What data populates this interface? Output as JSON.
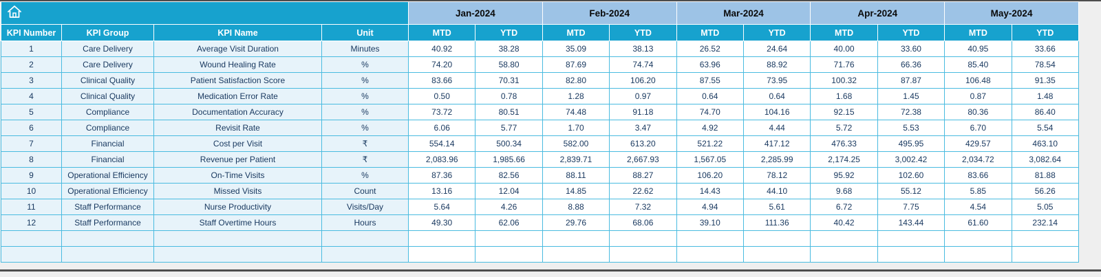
{
  "theme": {
    "header_teal": "#17a2ce",
    "month_header_bg": "#9dc3e6",
    "grid_border": "#49bbe0",
    "row_left_bg": "#e7f3fa",
    "text_color": "#17375e"
  },
  "icons": {
    "home": "home-icon"
  },
  "table": {
    "left_headers": [
      "KPI Number",
      "KPI Group",
      "KPI Name",
      "Unit"
    ],
    "months": [
      "Jan-2024",
      "Feb-2024",
      "Mar-2024",
      "Apr-2024",
      "May-2024"
    ],
    "sub_headers": [
      "MTD",
      "YTD"
    ],
    "rows": [
      {
        "num": "1",
        "group": "Care Delivery",
        "name": "Average Visit Duration",
        "unit": "Minutes",
        "values": [
          "40.92",
          "38.28",
          "35.09",
          "38.13",
          "26.52",
          "24.64",
          "40.00",
          "33.60",
          "40.95",
          "33.66"
        ]
      },
      {
        "num": "2",
        "group": "Care Delivery",
        "name": "Wound Healing Rate",
        "unit": "%",
        "values": [
          "74.20",
          "58.80",
          "87.69",
          "74.74",
          "63.96",
          "88.92",
          "71.76",
          "66.36",
          "85.40",
          "78.54"
        ]
      },
      {
        "num": "3",
        "group": "Clinical Quality",
        "name": "Patient Satisfaction Score",
        "unit": "%",
        "values": [
          "83.66",
          "70.31",
          "82.80",
          "106.20",
          "87.55",
          "73.95",
          "100.32",
          "87.87",
          "106.48",
          "91.35"
        ]
      },
      {
        "num": "4",
        "group": "Clinical Quality",
        "name": "Medication Error Rate",
        "unit": "%",
        "values": [
          "0.50",
          "0.78",
          "1.28",
          "0.97",
          "0.64",
          "0.64",
          "1.68",
          "1.45",
          "0.87",
          "1.48"
        ]
      },
      {
        "num": "5",
        "group": "Compliance",
        "name": "Documentation Accuracy",
        "unit": "%",
        "values": [
          "73.72",
          "80.51",
          "74.48",
          "91.18",
          "74.70",
          "104.16",
          "92.15",
          "72.38",
          "80.36",
          "86.40"
        ]
      },
      {
        "num": "6",
        "group": "Compliance",
        "name": "Revisit Rate",
        "unit": "%",
        "values": [
          "6.06",
          "5.77",
          "1.70",
          "3.47",
          "4.92",
          "4.44",
          "5.72",
          "5.53",
          "6.70",
          "5.54"
        ]
      },
      {
        "num": "7",
        "group": "Financial",
        "name": "Cost per Visit",
        "unit": "₹",
        "values": [
          "554.14",
          "500.34",
          "582.00",
          "613.20",
          "521.22",
          "417.12",
          "476.33",
          "495.95",
          "429.57",
          "463.10"
        ]
      },
      {
        "num": "8",
        "group": "Financial",
        "name": "Revenue per Patient",
        "unit": "₹",
        "values": [
          "2,083.96",
          "1,985.66",
          "2,839.71",
          "2,667.93",
          "1,567.05",
          "2,285.99",
          "2,174.25",
          "3,002.42",
          "2,034.72",
          "3,082.64"
        ]
      },
      {
        "num": "9",
        "group": "Operational Efficiency",
        "name": "On-Time Visits",
        "unit": "%",
        "values": [
          "87.36",
          "82.56",
          "88.11",
          "88.27",
          "106.20",
          "78.12",
          "95.92",
          "102.60",
          "83.66",
          "81.88"
        ]
      },
      {
        "num": "10",
        "group": "Operational Efficiency",
        "name": "Missed Visits",
        "unit": "Count",
        "values": [
          "13.16",
          "12.04",
          "14.85",
          "22.62",
          "14.43",
          "44.10",
          "9.68",
          "55.12",
          "5.85",
          "56.26"
        ]
      },
      {
        "num": "11",
        "group": "Staff Performance",
        "name": "Nurse Productivity",
        "unit": "Visits/Day",
        "values": [
          "5.64",
          "4.26",
          "8.88",
          "7.32",
          "4.94",
          "5.61",
          "6.72",
          "7.75",
          "4.54",
          "5.05"
        ]
      },
      {
        "num": "12",
        "group": "Staff Performance",
        "name": "Staff Overtime Hours",
        "unit": "Hours",
        "values": [
          "49.30",
          "62.06",
          "29.76",
          "68.06",
          "39.10",
          "111.36",
          "40.42",
          "143.44",
          "61.60",
          "232.14"
        ]
      }
    ],
    "empty_rows": 2
  }
}
